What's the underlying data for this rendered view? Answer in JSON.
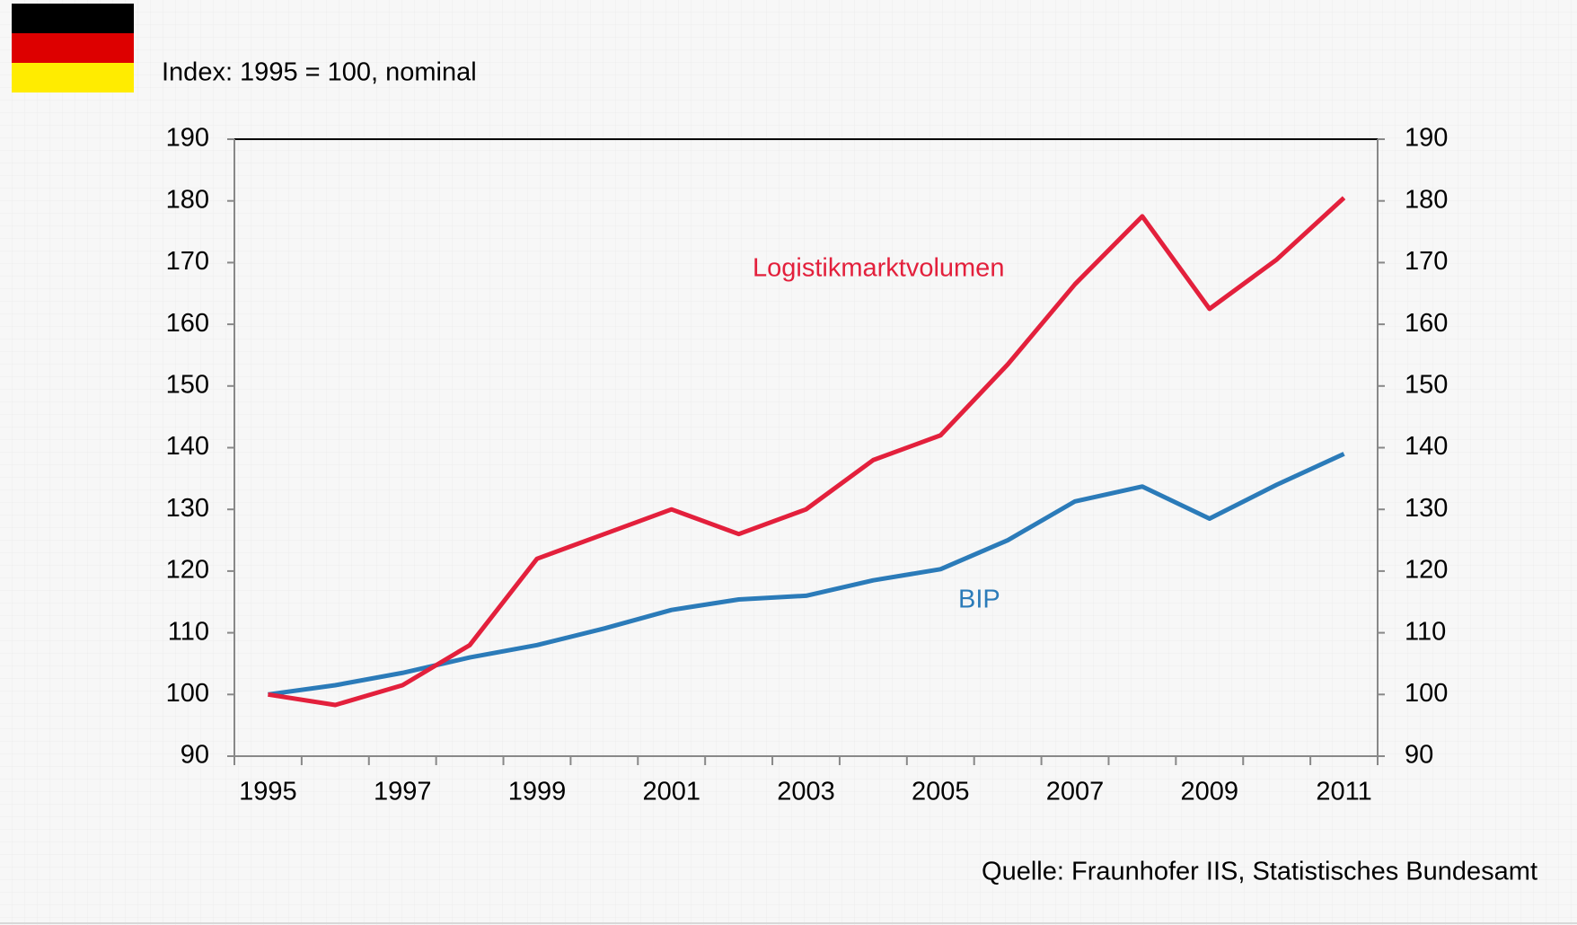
{
  "chart_data": {
    "type": "line",
    "title": "Index: 1995 = 100, nominal",
    "source": "Quelle: Fraunhofer IIS, Statistisches Bundesamt",
    "x": [
      1995,
      1996,
      1997,
      1998,
      1999,
      2000,
      2001,
      2002,
      2003,
      2004,
      2005,
      2006,
      2007,
      2008,
      2009,
      2010,
      2011
    ],
    "series": [
      {
        "name": "Logistikmarktvolumen",
        "color": "#e3203c",
        "values": [
          100,
          98.3,
          101.5,
          108,
          122,
          126,
          130,
          126,
          130,
          138,
          142,
          153.5,
          166.5,
          177.5,
          162.5,
          170.5,
          180.5
        ]
      },
      {
        "name": "BIP",
        "color": "#2b7bb9",
        "values": [
          100,
          101.5,
          103.5,
          106,
          108,
          110.7,
          113.7,
          115.4,
          116,
          118.5,
          120.3,
          125,
          131.3,
          133.7,
          128.5,
          134,
          139
        ]
      }
    ],
    "xlim": [
      1994.5,
      2011.5
    ],
    "xticks": [
      1995,
      1997,
      1999,
      2001,
      2003,
      2005,
      2007,
      2009,
      2011
    ],
    "ylim": [
      90,
      190
    ],
    "yticks": [
      90,
      100,
      110,
      120,
      130,
      140,
      150,
      160,
      170,
      180,
      190
    ],
    "y2lim": [
      90,
      190
    ],
    "y2ticks": [
      90,
      100,
      110,
      120,
      130,
      140,
      150,
      160,
      170,
      180,
      190
    ]
  }
}
